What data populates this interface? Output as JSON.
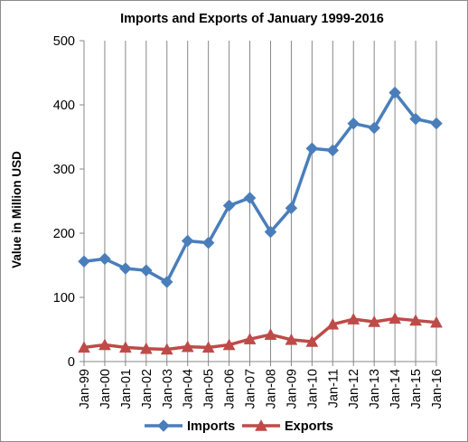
{
  "chart_data": {
    "type": "line",
    "title": "Imports and Exports of January 1999-2016",
    "xlabel": "",
    "ylabel": "Value in  Million  USD",
    "ylim": [
      0,
      500
    ],
    "yticks": [
      0,
      100,
      200,
      300,
      400,
      500
    ],
    "grid": "vertical",
    "legend": "bottom",
    "categories": [
      "Jan-99",
      "Jan-00",
      "Jan-01",
      "Jan-02",
      "Jan-03",
      "Jan-04",
      "Jan-05",
      "Jan-06",
      "Jan-07",
      "Jan-08",
      "Jan-09",
      "Jan-10",
      "Jan-11",
      "Jan-12",
      "Jan-13",
      "Jan-14",
      "Jan-15",
      "Jan-16"
    ],
    "series": [
      {
        "name": "Imports",
        "color": "#4a7ebb",
        "marker": "diamond",
        "values": [
          156,
          160,
          145,
          142,
          124,
          188,
          185,
          243,
          255,
          202,
          239,
          332,
          329,
          371,
          364,
          419,
          378,
          371
        ]
      },
      {
        "name": "Exports",
        "color": "#be4b48",
        "marker": "triangle",
        "values": [
          22,
          26,
          22,
          20,
          19,
          23,
          22,
          26,
          35,
          42,
          34,
          31,
          58,
          66,
          62,
          67,
          64,
          61
        ]
      }
    ]
  }
}
